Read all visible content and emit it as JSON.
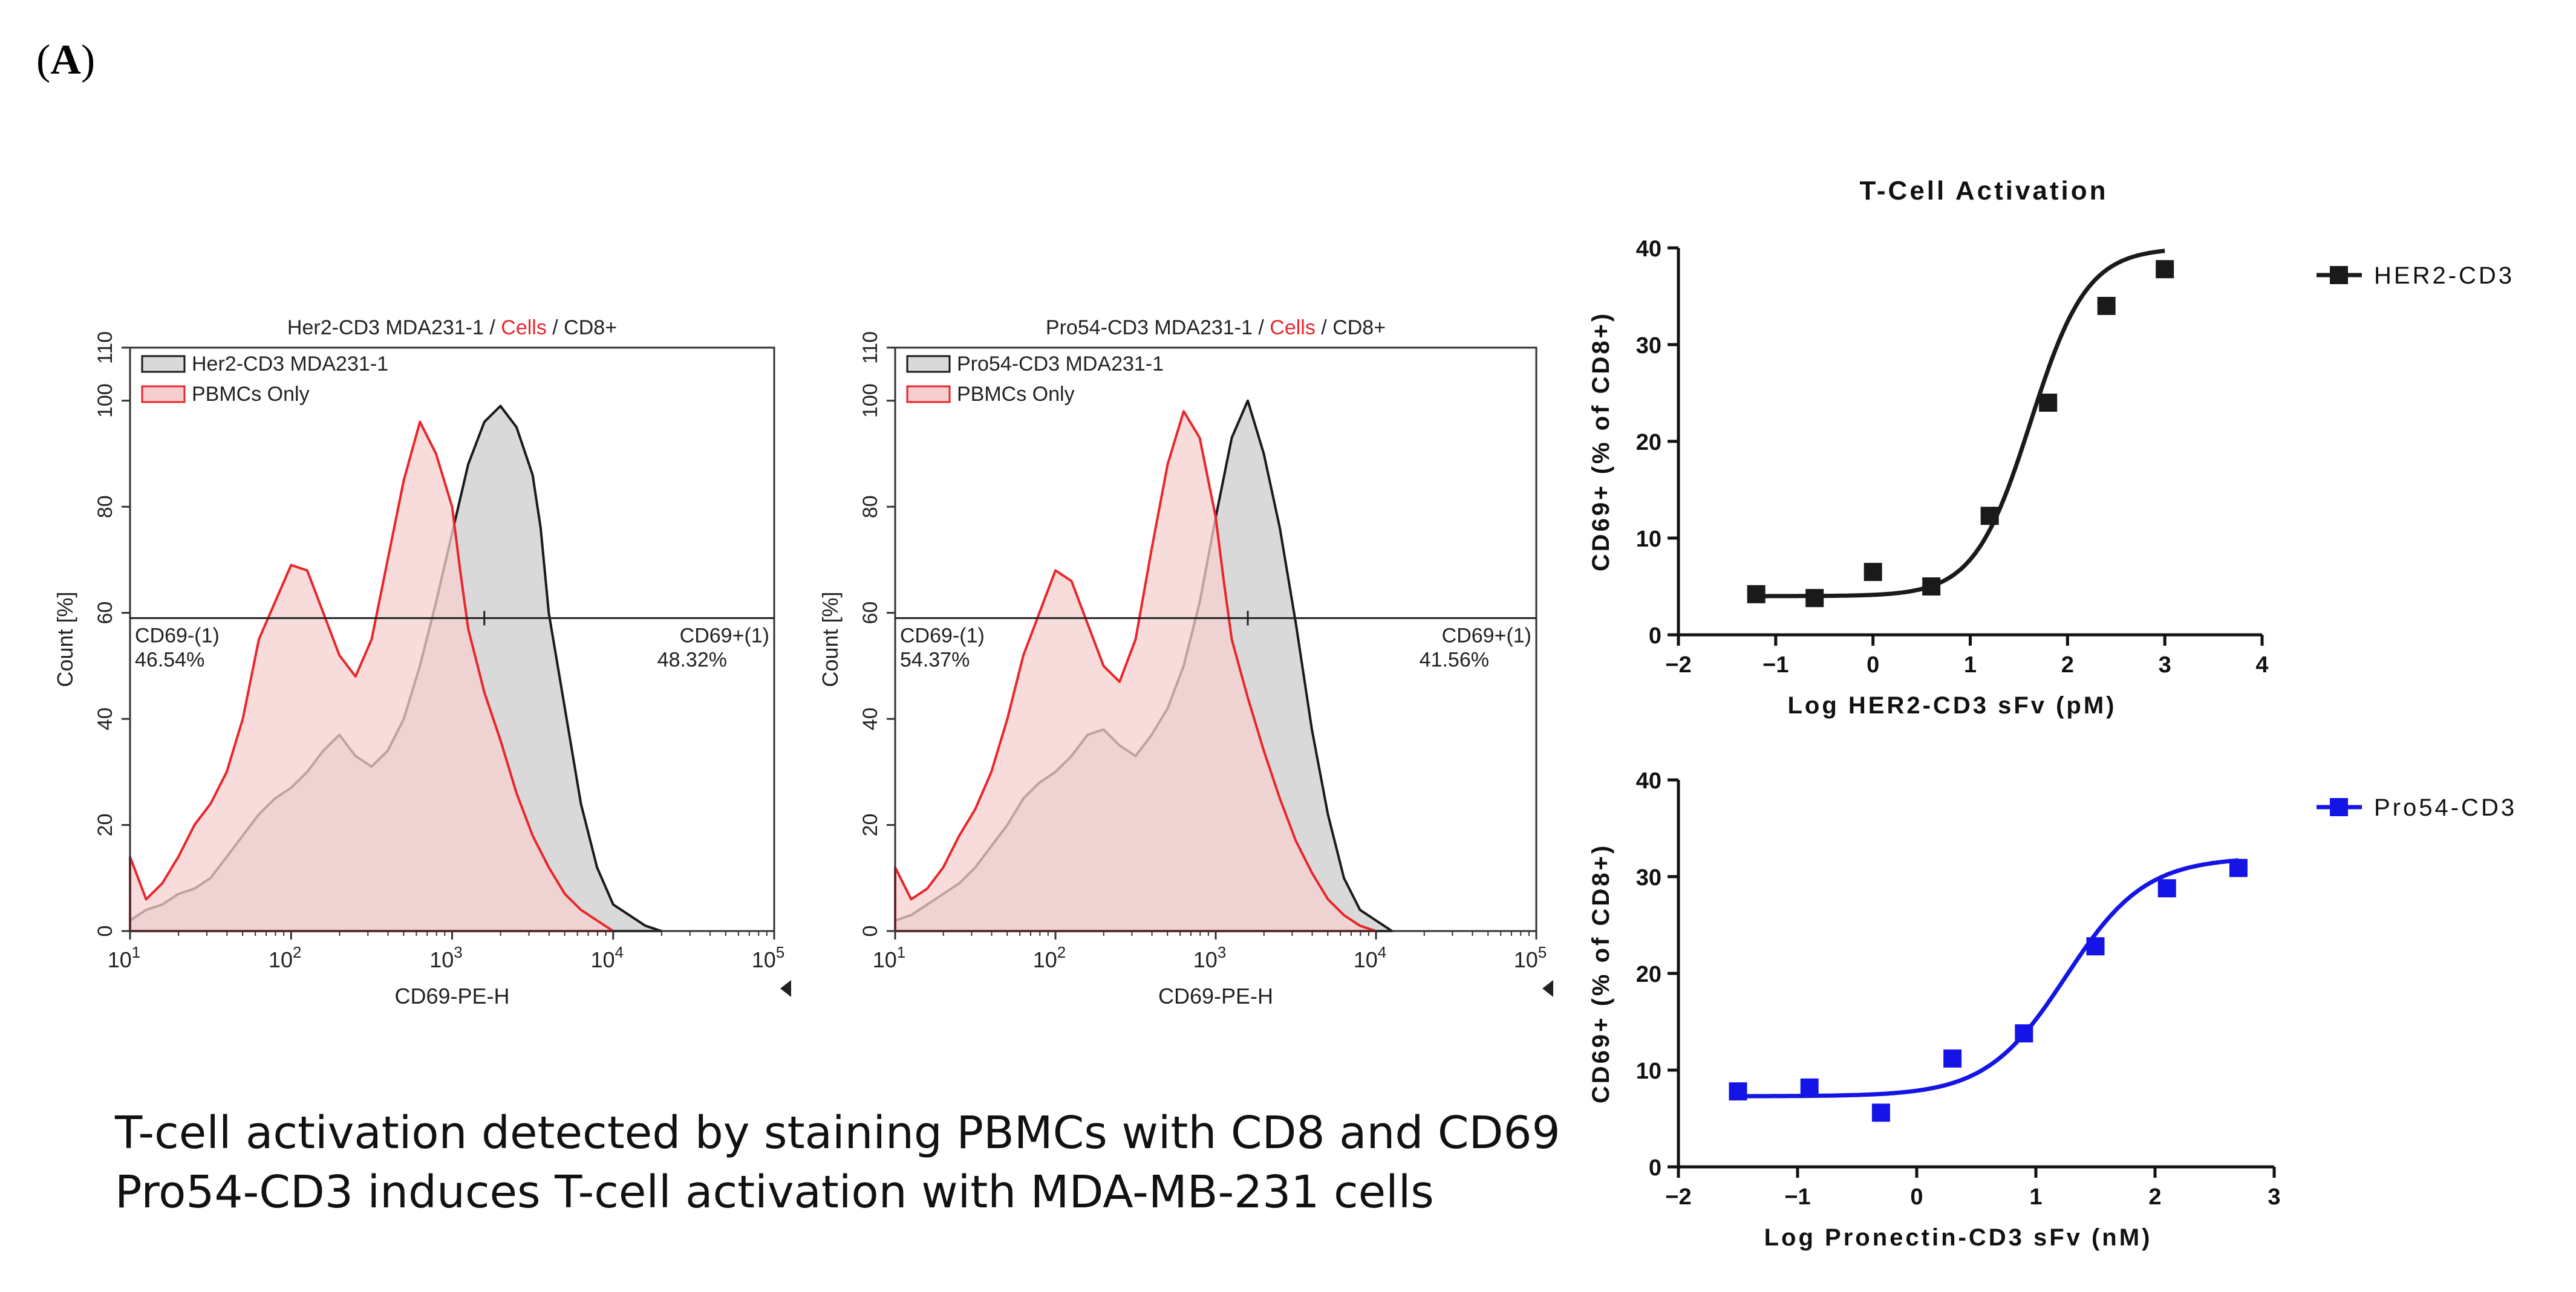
{
  "panel_label": "A",
  "caption": [
    "T-cell activation detected by staining PBMCs with CD8 and CD69",
    "Pro54-CD3 induces T-cell activation with MDA-MB-231 cells"
  ],
  "colors": {
    "red": "#e8262b",
    "black": "#1a1a1a",
    "blue": "#1414e6",
    "grey_fill": "#d9d9d9",
    "pink_fill": "#f5cfcf"
  },
  "chart_data": [
    {
      "type": "histogram",
      "title_parts": [
        "Her2-CD3 MDA231-1 / ",
        "Cells",
        " / CD8+"
      ],
      "xlabel": "CD69-PE-H",
      "ylabel": "Count [%]",
      "xscale": "log10",
      "xlim_exp": [
        1,
        5
      ],
      "x_tick_exps": [
        1,
        2,
        3,
        4,
        5
      ],
      "ylim": [
        0,
        110
      ],
      "y_ticks": [
        0,
        20,
        40,
        60,
        80,
        100,
        110
      ],
      "legend": [
        "Her2-CD3 MDA231-1",
        "PBMCs Only"
      ],
      "gate_level": 59,
      "gate_boundary_exp": 3.2,
      "gate_left_label": "CD69-(1)",
      "gate_left_value": "46.54%",
      "gate_right_label": "CD69+(1)",
      "gate_right_value": "48.32%",
      "series": [
        {
          "name": "Her2-CD3 MDA231-1",
          "x_exp": [
            1.0,
            1.1,
            1.2,
            1.3,
            1.4,
            1.5,
            1.6,
            1.7,
            1.8,
            1.9,
            2.0,
            2.1,
            2.2,
            2.3,
            2.4,
            2.5,
            2.6,
            2.7,
            2.8,
            2.9,
            3.0,
            3.1,
            3.2,
            3.3,
            3.4,
            3.5,
            3.55,
            3.6,
            3.7,
            3.8,
            3.9,
            4.0,
            4.1,
            4.2,
            4.3
          ],
          "y": [
            2,
            4,
            5,
            7,
            8,
            10,
            14,
            18,
            22,
            25,
            27,
            30,
            34,
            37,
            33,
            31,
            34,
            40,
            50,
            62,
            75,
            88,
            96,
            99,
            95,
            86,
            76,
            60,
            42,
            24,
            12,
            5,
            3,
            1,
            0
          ]
        },
        {
          "name": "PBMCs Only",
          "x_exp": [
            1.0,
            1.1,
            1.2,
            1.3,
            1.4,
            1.5,
            1.6,
            1.7,
            1.8,
            1.9,
            2.0,
            2.1,
            2.2,
            2.3,
            2.4,
            2.5,
            2.6,
            2.7,
            2.8,
            2.9,
            3.0,
            3.05,
            3.1,
            3.2,
            3.3,
            3.4,
            3.5,
            3.6,
            3.7,
            3.8,
            3.9,
            4.0
          ],
          "y": [
            14,
            6,
            9,
            14,
            20,
            24,
            30,
            40,
            55,
            62,
            69,
            68,
            60,
            52,
            48,
            55,
            70,
            85,
            96,
            90,
            80,
            68,
            57,
            45,
            36,
            26,
            18,
            12,
            7,
            4,
            2,
            0
          ]
        }
      ]
    },
    {
      "type": "histogram",
      "title_parts": [
        "Pro54-CD3 MDA231-1 / ",
        "Cells",
        " / CD8+"
      ],
      "xlabel": "CD69-PE-H",
      "ylabel": "Count [%]",
      "xscale": "log10",
      "xlim_exp": [
        1,
        5
      ],
      "x_tick_exps": [
        1,
        2,
        3,
        4,
        5
      ],
      "ylim": [
        0,
        110
      ],
      "y_ticks": [
        0,
        20,
        40,
        60,
        80,
        100,
        110
      ],
      "legend": [
        "Pro54-CD3 MDA231-1",
        "PBMCs Only"
      ],
      "gate_level": 59,
      "gate_boundary_exp": 3.2,
      "gate_left_label": "CD69-(1)",
      "gate_left_value": "54.37%",
      "gate_right_label": "CD69+(1)",
      "gate_right_value": "41.56%",
      "series": [
        {
          "name": "Pro54-CD3 MDA231-1",
          "x_exp": [
            1.0,
            1.1,
            1.2,
            1.3,
            1.4,
            1.5,
            1.6,
            1.7,
            1.8,
            1.9,
            2.0,
            2.1,
            2.2,
            2.3,
            2.4,
            2.5,
            2.6,
            2.7,
            2.8,
            2.9,
            3.0,
            3.1,
            3.2,
            3.3,
            3.4,
            3.5,
            3.6,
            3.7,
            3.8,
            3.9,
            4.0,
            4.1
          ],
          "y": [
            2,
            3,
            5,
            7,
            9,
            12,
            16,
            20,
            25,
            28,
            30,
            33,
            37,
            38,
            35,
            33,
            37,
            42,
            50,
            62,
            78,
            93,
            100,
            90,
            76,
            58,
            38,
            22,
            10,
            4,
            2,
            0
          ]
        },
        {
          "name": "PBMCs Only",
          "x_exp": [
            1.0,
            1.1,
            1.2,
            1.3,
            1.4,
            1.5,
            1.6,
            1.7,
            1.8,
            1.9,
            2.0,
            2.1,
            2.2,
            2.3,
            2.4,
            2.5,
            2.6,
            2.7,
            2.8,
            2.9,
            3.0,
            3.05,
            3.1,
            3.2,
            3.3,
            3.4,
            3.5,
            3.6,
            3.7,
            3.8,
            3.9,
            4.0
          ],
          "y": [
            12,
            6,
            8,
            12,
            18,
            23,
            30,
            40,
            52,
            60,
            68,
            66,
            58,
            50,
            47,
            55,
            72,
            88,
            98,
            93,
            78,
            66,
            55,
            44,
            34,
            25,
            17,
            11,
            6,
            3,
            1,
            0
          ]
        }
      ]
    },
    {
      "type": "scatter-line",
      "title": "T-Cell Activation",
      "xlabel": "Log HER2-CD3 sFv (pM)",
      "ylabel": "CD69+ (% of CD8+)",
      "xlim": [
        -2,
        4
      ],
      "x_ticks": [
        -2,
        -1,
        0,
        1,
        2,
        3,
        4
      ],
      "ylim": [
        0,
        40
      ],
      "y_ticks": [
        0,
        10,
        20,
        30,
        40
      ],
      "legend": "HER2-CD3",
      "color": "#1a1a1a",
      "marker": "square",
      "x": [
        -1.2,
        -0.6,
        0.0,
        0.6,
        1.2,
        1.8,
        2.4,
        3.0
      ],
      "y": [
        4.2,
        3.8,
        6.5,
        5.0,
        12.3,
        24.0,
        34.0,
        37.8
      ],
      "fit": {
        "bottom": 4.0,
        "top": 40.0,
        "log_ec50": 1.62,
        "hill": 1.5
      }
    },
    {
      "type": "scatter-line",
      "xlabel": "Log Pronectin-CD3 sFv (nM)",
      "ylabel": "CD69+ (% of CD8+)",
      "xlim": [
        -2,
        3
      ],
      "x_ticks": [
        -2,
        -1,
        0,
        1,
        2,
        3
      ],
      "ylim": [
        0,
        40
      ],
      "y_ticks": [
        0,
        10,
        20,
        30,
        40
      ],
      "legend": "Pro54-CD3",
      "color": "#1414e6",
      "marker": "square",
      "x": [
        -1.5,
        -0.9,
        -0.3,
        0.3,
        0.9,
        1.5,
        2.1,
        2.7
      ],
      "y": [
        7.8,
        8.2,
        5.6,
        11.2,
        13.8,
        22.8,
        28.8,
        30.9
      ],
      "fit": {
        "bottom": 7.3,
        "top": 32.0,
        "log_ec50": 1.25,
        "hill": 1.3
      }
    }
  ]
}
